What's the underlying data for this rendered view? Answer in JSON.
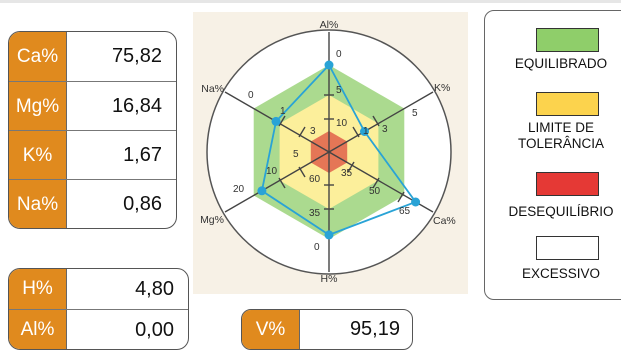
{
  "nutrients": [
    {
      "label": "Ca%",
      "value": "75,82"
    },
    {
      "label": "Mg%",
      "value": "16,84"
    },
    {
      "label": "K%",
      "value": "1,67"
    },
    {
      "label": "Na%",
      "value": "0,86"
    }
  ],
  "acidity": [
    {
      "label": "H%",
      "value": "4,80"
    },
    {
      "label": "Al%",
      "value": "0,00"
    }
  ],
  "base_saturation": {
    "label": "V%",
    "value": "95,19"
  },
  "colors": {
    "label_bg": "#e08a1e",
    "equilibrado": "#8fce6a",
    "limite": "#fcd34d",
    "desequilibrio": "#e53935",
    "excessivo": "#ffffff",
    "series": "#29a3d6"
  },
  "radar": {
    "axes": [
      "Al%",
      "K%",
      "Ca%",
      "H%",
      "Mg%",
      "Na%"
    ],
    "ticks": {
      "al": [
        "0",
        "5",
        "10"
      ],
      "k": [
        "1",
        "3",
        "5"
      ],
      "ca": [
        "35",
        "50",
        "65"
      ],
      "h": [
        "0",
        "35",
        "60"
      ],
      "mg": [
        "5",
        "10",
        "20"
      ],
      "na": [
        "0",
        "1",
        "3"
      ]
    },
    "series_values": {
      "Al%": 0.0,
      "K%": 1.67,
      "Ca%": 75.82,
      "H%": 4.8,
      "Mg%": 16.84,
      "Na%": 0.86
    }
  },
  "legend": {
    "equilibrado": "EQUILIBRADO",
    "limite_line1": "LIMITE DE",
    "limite_line2": "TOLERÂNCIA",
    "desequilibrio": "DESEQUILÍBRIO",
    "excessivo": "EXCESSIVO"
  }
}
